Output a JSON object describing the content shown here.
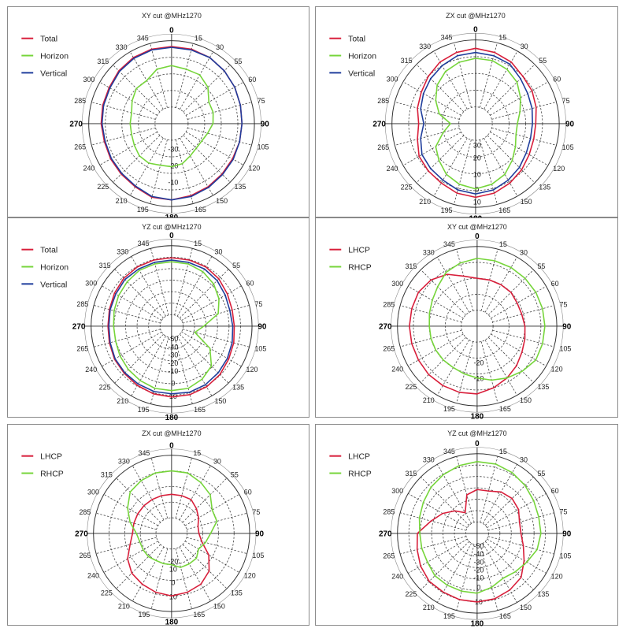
{
  "colors": {
    "total": "#d81e3a",
    "horizon": "#76d53a",
    "vertical": "#1f3d9c",
    "lhcp": "#d81e3a",
    "rhcp": "#76d53a"
  },
  "chart_data": [
    {
      "id": "xy-linear",
      "type": "polar-line",
      "title": "XY cut @MHz1270",
      "angle_labels": [
        "0",
        "15",
        "30",
        "55",
        "60",
        "75",
        "90",
        "105",
        "120",
        "135",
        "150",
        "165",
        "180",
        "195",
        "210",
        "225",
        "240",
        "265",
        "270",
        "285",
        "300",
        "315",
        "330",
        "345"
      ],
      "radial_labels": [
        {
          "r": 0.3,
          "text": "-30"
        },
        {
          "r": 0.5,
          "text": "-20"
        },
        {
          "r": 0.7,
          "text": "-10"
        }
      ],
      "grid_rings": 5,
      "legend_placement": "top-left",
      "series": [
        {
          "name": "Total",
          "color_key": "total",
          "r": [
            0.93,
            0.93,
            0.92,
            0.9,
            0.88,
            0.86,
            0.85,
            0.85,
            0.85,
            0.86,
            0.88,
            0.9,
            0.92,
            0.92,
            0.88,
            0.86,
            0.85,
            0.84,
            0.85,
            0.86,
            0.87,
            0.9,
            0.92,
            0.93
          ]
        },
        {
          "name": "Horizon",
          "color_key": "horizon",
          "r": [
            0.7,
            0.68,
            0.68,
            0.62,
            0.52,
            0.52,
            0.5,
            0.45,
            0.42,
            0.42,
            0.45,
            0.5,
            0.52,
            0.52,
            0.55,
            0.55,
            0.52,
            0.5,
            0.5,
            0.5,
            0.55,
            0.6,
            0.6,
            0.68
          ]
        },
        {
          "name": "Vertical",
          "color_key": "vertical",
          "r": [
            0.92,
            0.92,
            0.92,
            0.9,
            0.88,
            0.86,
            0.85,
            0.85,
            0.86,
            0.87,
            0.89,
            0.91,
            0.92,
            0.91,
            0.87,
            0.85,
            0.84,
            0.83,
            0.84,
            0.85,
            0.86,
            0.89,
            0.91,
            0.92
          ]
        }
      ]
    },
    {
      "id": "zx-linear",
      "type": "polar-line",
      "title": "ZX cut @MHz1270",
      "angle_labels": [
        "0",
        "15",
        "30",
        "55",
        "60",
        "75",
        "90",
        "105",
        "120",
        "135",
        "150",
        "165",
        "180",
        "195",
        "210",
        "225",
        "240",
        "265",
        "270",
        "285",
        "300",
        "315",
        "330",
        "345"
      ],
      "radial_labels": [
        {
          "r": 0.25,
          "text": "30"
        },
        {
          "r": 0.4,
          "text": "20"
        },
        {
          "r": 0.6,
          "text": "10"
        },
        {
          "r": 0.78,
          "text": "0"
        },
        {
          "r": 0.93,
          "text": "10"
        }
      ],
      "grid_rings": 5,
      "legend_placement": "top-left",
      "series": [
        {
          "name": "Total",
          "color_key": "total",
          "r": [
            0.9,
            0.88,
            0.85,
            0.8,
            0.78,
            0.75,
            0.72,
            0.72,
            0.74,
            0.78,
            0.82,
            0.86,
            0.88,
            0.86,
            0.82,
            0.8,
            0.78,
            0.72,
            0.68,
            0.72,
            0.75,
            0.8,
            0.85,
            0.88
          ]
        },
        {
          "name": "Horizon",
          "color_key": "horizon",
          "r": [
            0.78,
            0.78,
            0.75,
            0.7,
            0.62,
            0.55,
            0.5,
            0.5,
            0.55,
            0.62,
            0.7,
            0.75,
            0.78,
            0.75,
            0.7,
            0.62,
            0.55,
            0.4,
            0.3,
            0.45,
            0.55,
            0.65,
            0.72,
            0.76
          ]
        },
        {
          "name": "Vertical",
          "color_key": "vertical",
          "r": [
            0.85,
            0.84,
            0.82,
            0.76,
            0.72,
            0.7,
            0.68,
            0.68,
            0.7,
            0.74,
            0.78,
            0.82,
            0.84,
            0.82,
            0.78,
            0.76,
            0.74,
            0.68,
            0.62,
            0.68,
            0.72,
            0.76,
            0.8,
            0.84
          ]
        }
      ]
    },
    {
      "id": "yz-linear",
      "type": "polar-line",
      "title": "YZ cut @MHz1270",
      "angle_labels": [
        "0",
        "15",
        "30",
        "55",
        "60",
        "75",
        "90",
        "105",
        "120",
        "135",
        "150",
        "165",
        "180",
        "195",
        "210",
        "225",
        "240",
        "265",
        "270",
        "285",
        "300",
        "315",
        "330",
        "345"
      ],
      "radial_labels": [
        {
          "r": 0.15,
          "text": "-50"
        },
        {
          "r": 0.25,
          "text": "-40"
        },
        {
          "r": 0.35,
          "text": "-30"
        },
        {
          "r": 0.45,
          "text": "-20"
        },
        {
          "r": 0.55,
          "text": "-10"
        },
        {
          "r": 0.7,
          "text": "0"
        },
        {
          "r": 0.86,
          "text": "10"
        }
      ],
      "grid_rings": 7,
      "legend_placement": "top-left",
      "series": [
        {
          "name": "Total",
          "color_key": "total",
          "r": [
            0.85,
            0.85,
            0.85,
            0.83,
            0.8,
            0.78,
            0.78,
            0.8,
            0.82,
            0.85,
            0.87,
            0.88,
            0.88,
            0.87,
            0.85,
            0.83,
            0.82,
            0.8,
            0.79,
            0.8,
            0.82,
            0.84,
            0.85,
            0.85
          ]
        },
        {
          "name": "Horizon",
          "color_key": "horizon",
          "r": [
            0.8,
            0.8,
            0.78,
            0.74,
            0.68,
            0.6,
            0.4,
            0.3,
            0.55,
            0.7,
            0.76,
            0.8,
            0.8,
            0.8,
            0.78,
            0.76,
            0.74,
            0.72,
            0.72,
            0.74,
            0.76,
            0.78,
            0.8,
            0.8
          ]
        },
        {
          "name": "Vertical",
          "color_key": "vertical",
          "r": [
            0.82,
            0.82,
            0.82,
            0.8,
            0.77,
            0.75,
            0.76,
            0.78,
            0.8,
            0.82,
            0.84,
            0.85,
            0.84,
            0.84,
            0.83,
            0.82,
            0.81,
            0.79,
            0.78,
            0.79,
            0.8,
            0.82,
            0.82,
            0.82
          ]
        }
      ]
    },
    {
      "id": "xy-circular",
      "type": "polar-line",
      "title": "XY cut @MHz1270",
      "angle_labels": [
        "0",
        "15",
        "30",
        "55",
        "60",
        "75",
        "90",
        "105",
        "120",
        "135",
        "150",
        "165",
        "180",
        "195",
        "210",
        "225",
        "240",
        "265",
        "270",
        "285",
        "300",
        "315",
        "330",
        "345"
      ],
      "radial_labels": [
        {
          "r": 0.45,
          "text": "-20"
        },
        {
          "r": 0.65,
          "text": "-10"
        }
      ],
      "grid_rings": 5,
      "legend_placement": "top-left",
      "series": [
        {
          "name": "LHCP",
          "color_key": "lhcp",
          "r": [
            0.6,
            0.6,
            0.6,
            0.6,
            0.58,
            0.58,
            0.6,
            0.62,
            0.65,
            0.7,
            0.75,
            0.8,
            0.85,
            0.86,
            0.86,
            0.86,
            0.85,
            0.85,
            0.85,
            0.85,
            0.85,
            0.82,
            0.75,
            0.65
          ]
        },
        {
          "name": "RHCP",
          "color_key": "rhcp",
          "r": [
            0.85,
            0.85,
            0.85,
            0.85,
            0.85,
            0.85,
            0.85,
            0.85,
            0.85,
            0.8,
            0.75,
            0.7,
            0.65,
            0.62,
            0.6,
            0.6,
            0.6,
            0.6,
            0.6,
            0.62,
            0.65,
            0.7,
            0.78,
            0.82
          ]
        }
      ]
    },
    {
      "id": "zx-circular",
      "type": "polar-line",
      "title": "ZX cut @MHz1270",
      "angle_labels": [
        "0",
        "15",
        "30",
        "55",
        "60",
        "75",
        "90",
        "105",
        "120",
        "135",
        "150",
        "165",
        "180",
        "195",
        "210",
        "225",
        "240",
        "265",
        "270",
        "285",
        "300",
        "315",
        "330",
        "345"
      ],
      "radial_labels": [
        {
          "r": 0.35,
          "text": "-20"
        },
        {
          "r": 0.45,
          "text": "10"
        },
        {
          "r": 0.62,
          "text": "0"
        },
        {
          "r": 0.8,
          "text": "10"
        }
      ],
      "grid_rings": 5,
      "legend_placement": "top-left",
      "series": [
        {
          "name": "LHCP",
          "color_key": "lhcp",
          "r": [
            0.5,
            0.5,
            0.5,
            0.45,
            0.4,
            0.35,
            0.35,
            0.4,
            0.55,
            0.68,
            0.75,
            0.78,
            0.8,
            0.78,
            0.75,
            0.72,
            0.65,
            0.55,
            0.5,
            0.5,
            0.5,
            0.5,
            0.5,
            0.5
          ]
        },
        {
          "name": "RHCP",
          "color_key": "rhcp",
          "r": [
            0.8,
            0.8,
            0.75,
            0.7,
            0.6,
            0.6,
            0.5,
            0.45,
            0.4,
            0.45,
            0.45,
            0.45,
            0.4,
            0.4,
            0.4,
            0.42,
            0.42,
            0.42,
            0.45,
            0.55,
            0.65,
            0.75,
            0.78,
            0.8
          ]
        }
      ]
    },
    {
      "id": "yz-circular",
      "type": "polar-line",
      "title": "YZ cut @MHz1270",
      "angle_labels": [
        "0",
        "15",
        "30",
        "55",
        "60",
        "75",
        "90",
        "105",
        "120",
        "135",
        "150",
        "165",
        "180",
        "195",
        "210",
        "225",
        "240",
        "265",
        "270",
        "285",
        "300",
        "315",
        "330",
        "345"
      ],
      "radial_labels": [
        {
          "r": 0.15,
          "text": "-50"
        },
        {
          "r": 0.25,
          "text": "-40"
        },
        {
          "r": 0.35,
          "text": "-30"
        },
        {
          "r": 0.45,
          "text": "-20"
        },
        {
          "r": 0.55,
          "text": "-10"
        },
        {
          "r": 0.67,
          "text": "0"
        },
        {
          "r": 0.85,
          "text": "10"
        }
      ],
      "grid_rings": 7,
      "legend_placement": "top-left",
      "series": [
        {
          "name": "LHCP",
          "color_key": "lhcp",
          "r": [
            0.55,
            0.55,
            0.6,
            0.62,
            0.6,
            0.55,
            0.55,
            0.6,
            0.68,
            0.78,
            0.82,
            0.85,
            0.86,
            0.86,
            0.85,
            0.85,
            0.82,
            0.78,
            0.75,
            0.6,
            0.5,
            0.4,
            0.3,
            0.5
          ]
        },
        {
          "name": "RHCP",
          "color_key": "rhcp",
          "r": [
            0.9,
            0.9,
            0.88,
            0.85,
            0.82,
            0.8,
            0.8,
            0.78,
            0.72,
            0.68,
            0.65,
            0.7,
            0.75,
            0.75,
            0.75,
            0.75,
            0.72,
            0.72,
            0.72,
            0.75,
            0.78,
            0.82,
            0.85,
            0.88
          ]
        }
      ]
    }
  ]
}
